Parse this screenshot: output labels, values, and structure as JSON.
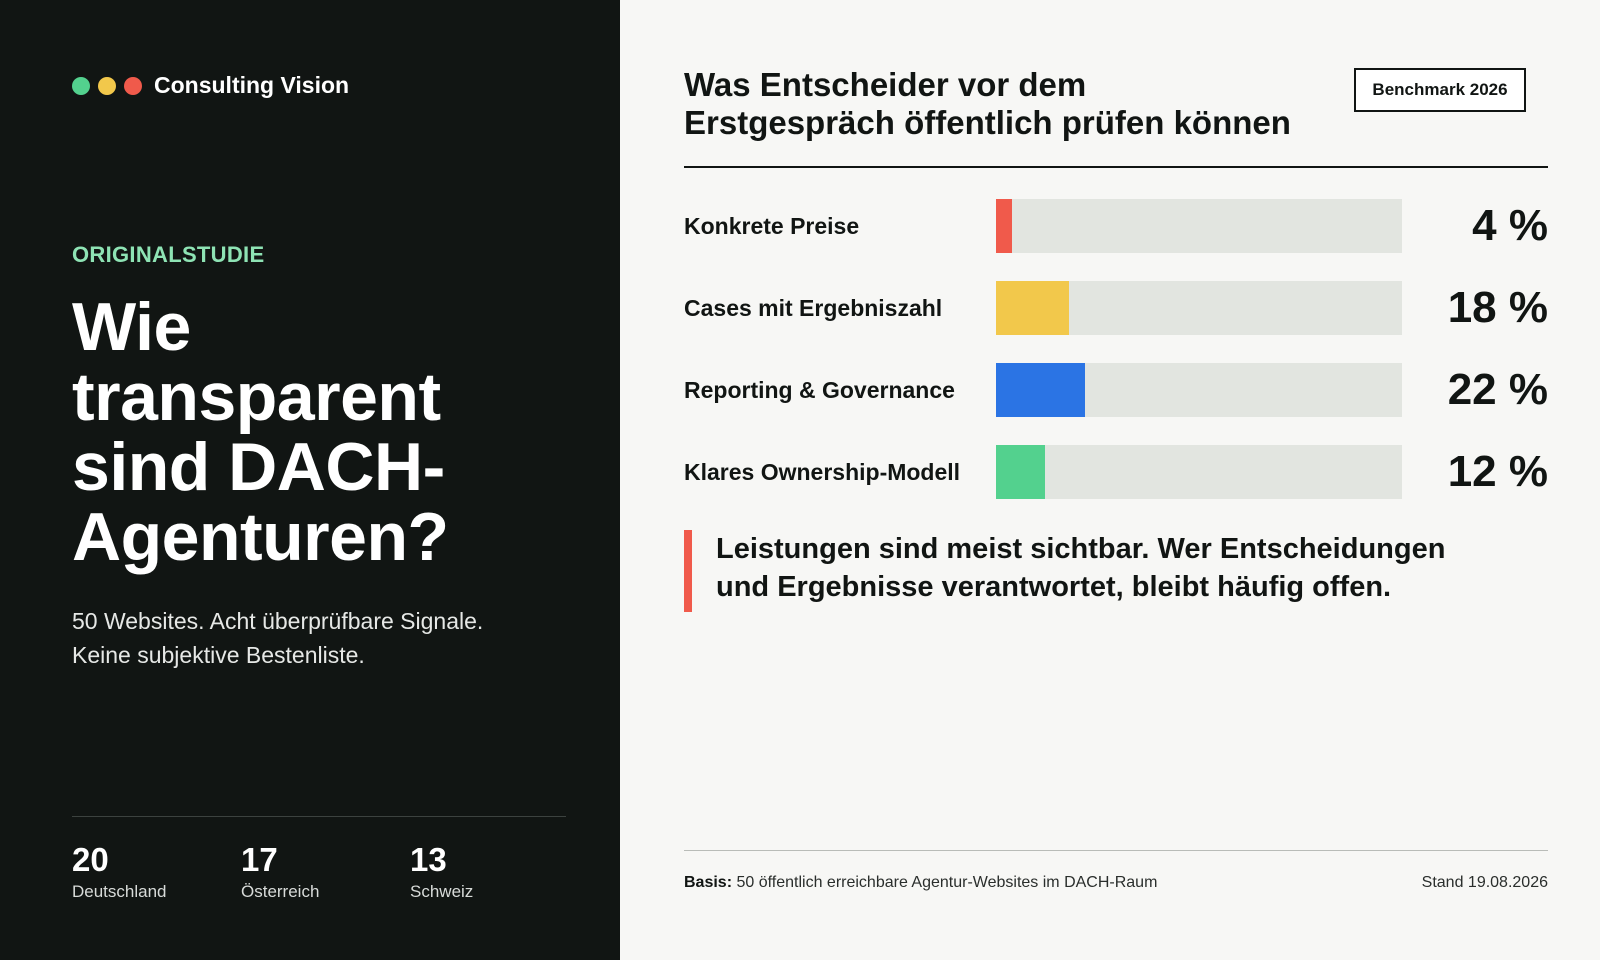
{
  "brand": {
    "name": "Consulting Vision",
    "dots": [
      "#53d18e",
      "#f2c84b",
      "#f05a4b"
    ]
  },
  "intro": {
    "eyebrow": "ORIGINALSTUDIE",
    "eyebrow_color": "#8ee3b4",
    "headline_lines": [
      "Wie",
      "transparent",
      "sind DACH-",
      "Agenturen?"
    ],
    "subline_lines": [
      "50 Websites. Acht überprüfbare Signale.",
      "Keine subjektive Bestenliste."
    ]
  },
  "stats": [
    {
      "value": "20",
      "label": "Deutschland"
    },
    {
      "value": "17",
      "label": "Österreich"
    },
    {
      "value": "13",
      "label": "Schweiz"
    }
  ],
  "badge": "Benchmark 2026",
  "chart_data": {
    "type": "bar",
    "orientation": "horizontal",
    "title_lines": [
      "Was Entscheider vor dem",
      "Erstgespräch öffentlich prüfen können"
    ],
    "xlim": [
      0,
      100
    ],
    "unit": "%",
    "grid": false,
    "categories": [
      "Konkrete Preise",
      "Cases mit Ergebniszahl",
      "Reporting & Governance",
      "Klares Ownership-Modell"
    ],
    "values": [
      4,
      18,
      22,
      12
    ],
    "value_labels": [
      "4 %",
      "18 %",
      "22 %",
      "12 %"
    ],
    "colors": [
      "#f05a4b",
      "#f2c84b",
      "#2b74e4",
      "#53d18e"
    ],
    "track_color": "#e2e5e0"
  },
  "quote": {
    "lines": [
      "Leistungen sind meist sichtbar. Wer Entscheidungen",
      "und Ergebnisse verantwortet, bleibt häufig offen."
    ],
    "accent": "#f05a4b"
  },
  "footer": {
    "basis_label": "Basis:",
    "basis_text": "50 öffentlich erreichbare Agentur-Websites im DACH-Raum",
    "date": "Stand 19.08.2026"
  }
}
